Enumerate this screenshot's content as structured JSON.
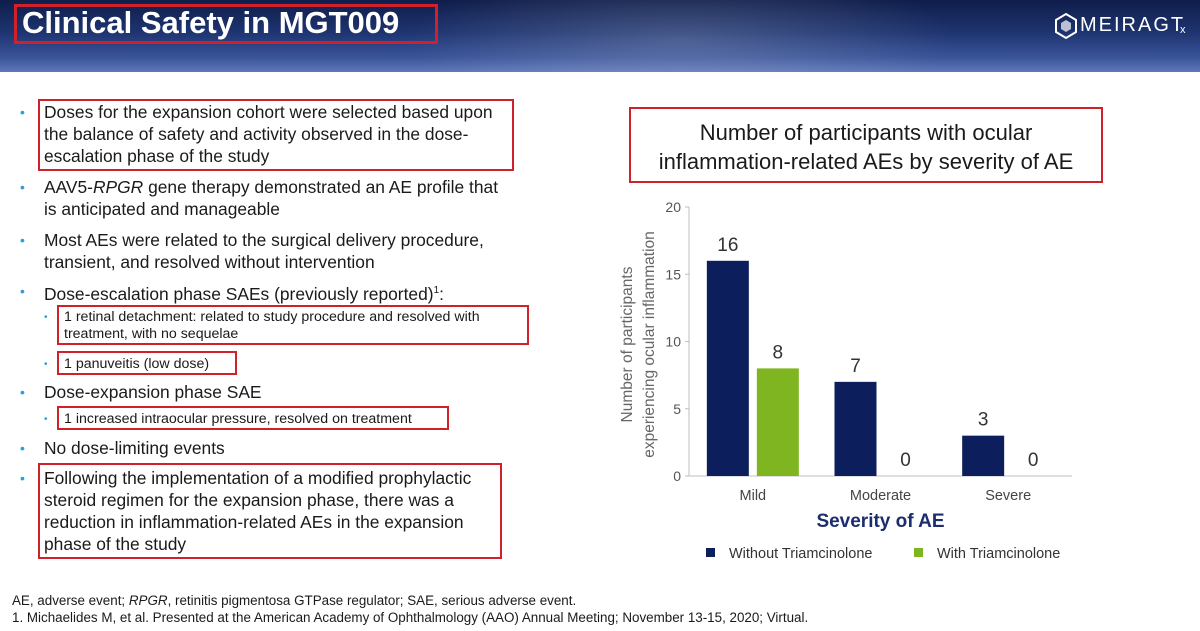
{
  "header": {
    "title": "Clinical Safety in MGT009",
    "logo_text": "MEIRAGT",
    "logo_subscript": "x"
  },
  "bullets": [
    {
      "id": "b1",
      "lines": [
        "Doses for the expansion cohort were selected based upon",
        "the balance of safety and activity observed in the dose-",
        "escalation phase of the study"
      ],
      "highlighted": true
    },
    {
      "id": "b2",
      "lines_rich": [
        [
          "AAV5-",
          {
            "italic": "RPGR"
          },
          " gene therapy demonstrated an AE profile that"
        ],
        [
          "is anticipated and manageable"
        ]
      ],
      "highlighted": false
    },
    {
      "id": "b3",
      "lines": [
        "Most AEs were related to the surgical delivery procedure,",
        "transient, and resolved without intervention"
      ],
      "highlighted": false
    },
    {
      "id": "b4",
      "text": "Dose-escalation phase SAEs (previously reported)",
      "superscript": "1",
      "suffix": ":",
      "highlighted": false
    },
    {
      "id": "sb1",
      "lines": [
        "1 retinal detachment: related to study procedure and resolved with",
        "treatment, with no sequelae"
      ],
      "highlighted": true
    },
    {
      "id": "sb2",
      "text": "1 panuveitis (low dose)",
      "highlighted": true
    },
    {
      "id": "b5",
      "text": "Dose-expansion phase SAE",
      "highlighted": false
    },
    {
      "id": "sb3",
      "text": "1 increased intraocular pressure, resolved on treatment",
      "highlighted": true
    },
    {
      "id": "b6",
      "text": "No dose-limiting events",
      "highlighted": false
    },
    {
      "id": "b7",
      "lines": [
        "Following the implementation of a modified prophylactic",
        "steroid regimen for the expansion phase, there was a",
        "reduction in inflammation-related AEs in the expansion",
        "phase of the study"
      ],
      "highlighted": true
    }
  ],
  "chart_data": {
    "type": "bar",
    "title": "Number of participants with ocular inflammation-related AEs by severity of AE",
    "title_lines": [
      "Number of participants with ocular",
      "inflammation-related AEs by severity of AE"
    ],
    "categories": [
      "Mild",
      "Moderate",
      "Severe"
    ],
    "series": [
      {
        "name": "Without Triamcinolone",
        "values": [
          16,
          7,
          3
        ],
        "color": "#0c1f5c"
      },
      {
        "name": "With Triamcinolone",
        "values": [
          8,
          0,
          0
        ],
        "color": "#7fb520"
      }
    ],
    "xlabel": "Severity of AE",
    "ylabel": "Number of participants experiencing ocular inflammation",
    "ylabel_lines": [
      "Number of participants",
      "experiencing ocular inflammation"
    ],
    "ylim": [
      0,
      20
    ],
    "yticks": [
      0,
      5,
      10,
      15,
      20
    ],
    "data_labels": true,
    "grid": false,
    "legend_position": "bottom"
  },
  "footnotes": {
    "line1_rich": [
      "AE, adverse event; ",
      {
        "italic": "RPGR"
      },
      ", retinitis pigmentosa GTPase regulator; SAE, serious adverse event."
    ],
    "line2": "1. Michaelides M, et al. Presented at the American Academy of Ophthalmology (AAO) Annual Meeting; November 13-15, 2020; Virtual."
  },
  "colors": {
    "accent_red": "#d0202a",
    "bullet_blue": "#2a9ed8",
    "header_navy": "#1e3470",
    "xlabel_navy": "#1b2d6e"
  }
}
